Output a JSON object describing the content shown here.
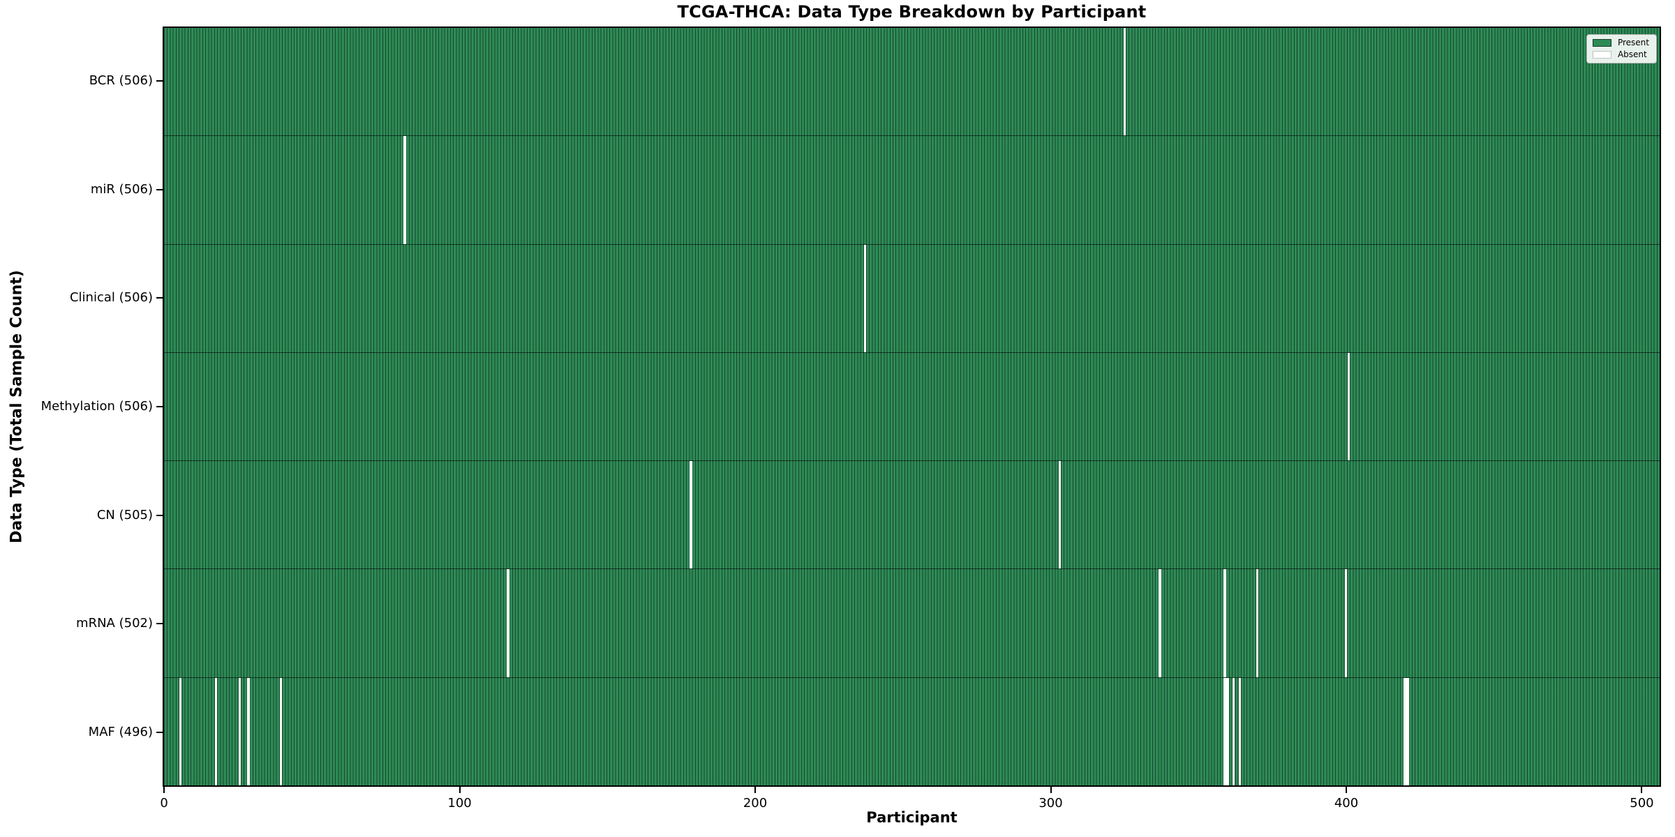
{
  "chart_data": {
    "type": "heatmap",
    "title": "TCGA-THCA: Data Type Breakdown by Participant",
    "xlabel": "Participant",
    "ylabel": "Data Type (Total Sample Count)",
    "x_ticks": [
      0,
      100,
      200,
      300,
      400,
      500
    ],
    "xlim": [
      -0.5,
      506.5
    ],
    "n_participants": 507,
    "n_rows": 7,
    "grid": false,
    "legend": {
      "position": "upper-right",
      "entries": [
        {
          "label": "Present",
          "color": "#2e8b57"
        },
        {
          "label": "Absent",
          "color": "#ffffff"
        }
      ]
    },
    "colors": {
      "present": "#2e8b57",
      "absent": "#ffffff",
      "bar_edge": "rgba(0,0,0,0.5)",
      "axis": "#000000",
      "legend_bg": "rgba(250,252,250,0.92)",
      "legend_border": "#b3b3b3"
    },
    "rows": [
      {
        "data_type": "BCR",
        "label": "BCR (506)",
        "present_count": 506,
        "absent_participants": [
          325
        ]
      },
      {
        "data_type": "miR",
        "label": "miR (506)",
        "present_count": 506,
        "absent_participants": [
          81
        ]
      },
      {
        "data_type": "Clinical",
        "label": "Clinical (506)",
        "present_count": 506,
        "absent_participants": [
          237
        ]
      },
      {
        "data_type": "Methylation",
        "label": "Methylation (506)",
        "present_count": 506,
        "absent_participants": [
          401
        ]
      },
      {
        "data_type": "CN",
        "label": "CN (505)",
        "present_count": 505,
        "absent_participants": [
          178,
          303
        ]
      },
      {
        "data_type": "mRNA",
        "label": "mRNA (502)",
        "present_count": 502,
        "absent_participants": [
          116,
          337,
          359,
          370,
          400
        ]
      },
      {
        "data_type": "MAF",
        "label": "MAF (496)",
        "present_count": 496,
        "absent_participants": [
          5,
          17,
          25,
          28,
          39,
          359,
          360,
          362,
          364,
          420,
          421
        ]
      }
    ]
  }
}
